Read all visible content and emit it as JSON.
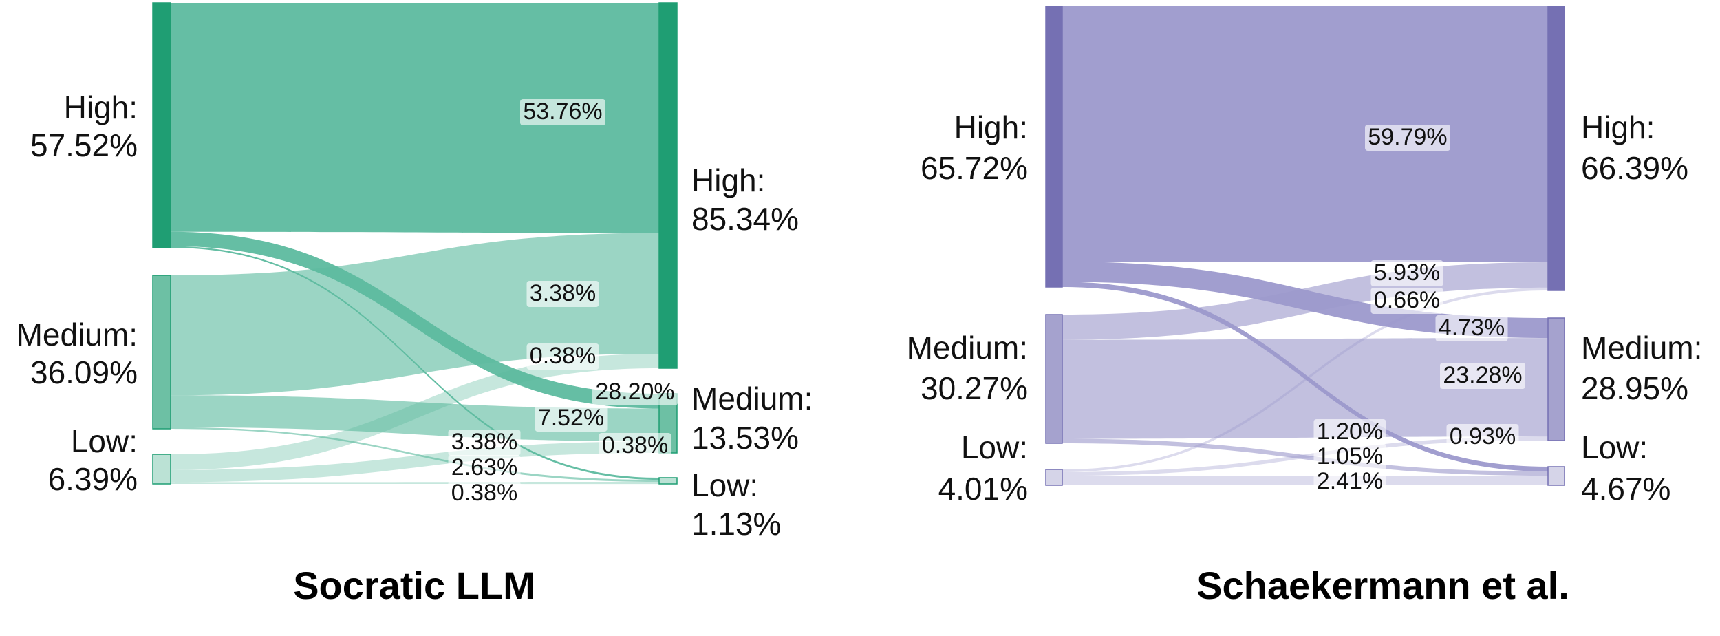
{
  "chart_data": [
    {
      "type": "sankey",
      "title": "Socratic LLM",
      "colors": {
        "node": "#1f9e73",
        "flow": "#5dbb9f",
        "label_box": "#ffffff"
      },
      "left_nodes": [
        {
          "name": "High:",
          "value_label": "57.52%",
          "value": 57.52
        },
        {
          "name": "Medium:",
          "value_label": "36.09%",
          "value": 36.09
        },
        {
          "name": "Low:",
          "value_label": "6.39%",
          "value": 6.39
        }
      ],
      "right_nodes": [
        {
          "name": "High:",
          "value_label": "85.34%",
          "value": 85.34
        },
        {
          "name": "Medium:",
          "value_label": "13.53%",
          "value": 13.53
        },
        {
          "name": "Low:",
          "value_label": "1.13%",
          "value": 1.13
        }
      ],
      "flows": [
        {
          "source": 0,
          "target": 0,
          "value": 53.76,
          "label": "53.76%"
        },
        {
          "source": 0,
          "target": 1,
          "value": 3.38,
          "label": "3.38%"
        },
        {
          "source": 0,
          "target": 2,
          "value": 0.38,
          "label": "0.38%"
        },
        {
          "source": 1,
          "target": 0,
          "value": 28.2,
          "label": "28.20%"
        },
        {
          "source": 1,
          "target": 1,
          "value": 7.52,
          "label": "7.52%"
        },
        {
          "source": 1,
          "target": 2,
          "value": 0.38,
          "label": "0.38%"
        },
        {
          "source": 2,
          "target": 0,
          "value": 3.38,
          "label": "3.38%"
        },
        {
          "source": 2,
          "target": 1,
          "value": 2.63,
          "label": "2.63%"
        },
        {
          "source": 2,
          "target": 2,
          "value": 0.38,
          "label": "0.38%"
        }
      ]
    },
    {
      "type": "sankey",
      "title": "Schaekermann et al.",
      "colors": {
        "node": "#7570b3",
        "flow": "#9c99cc",
        "label_box": "#ffffff"
      },
      "left_nodes": [
        {
          "name": "High:",
          "value_label": "65.72%",
          "value": 65.72
        },
        {
          "name": "Medium:",
          "value_label": "30.27%",
          "value": 30.27
        },
        {
          "name": "Low:",
          "value_label": "4.01%",
          "value": 4.01
        }
      ],
      "right_nodes": [
        {
          "name": "High:",
          "value_label": "66.39%",
          "value": 66.39
        },
        {
          "name": "Medium:",
          "value_label": "28.95%",
          "value": 28.95
        },
        {
          "name": "Low:",
          "value_label": "4.67%",
          "value": 4.67
        }
      ],
      "flows": [
        {
          "source": 0,
          "target": 0,
          "value": 59.79,
          "label": "59.79%"
        },
        {
          "source": 0,
          "target": 1,
          "value": 4.73,
          "label": "4.73%"
        },
        {
          "source": 0,
          "target": 2,
          "value": 1.2,
          "label": "1.20%"
        },
        {
          "source": 1,
          "target": 0,
          "value": 5.93,
          "label": "5.93%"
        },
        {
          "source": 1,
          "target": 1,
          "value": 23.28,
          "label": "23.28%"
        },
        {
          "source": 1,
          "target": 2,
          "value": 1.05,
          "label": "1.05%"
        },
        {
          "source": 2,
          "target": 0,
          "value": 0.66,
          "label": "0.66%"
        },
        {
          "source": 2,
          "target": 1,
          "value": 0.93,
          "label": "0.93%"
        },
        {
          "source": 2,
          "target": 2,
          "value": 2.41,
          "label": "2.41%"
        }
      ]
    }
  ]
}
